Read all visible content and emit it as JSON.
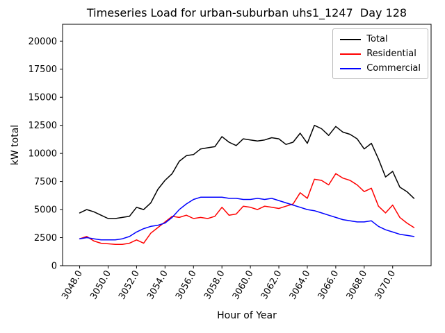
{
  "chart_data": {
    "type": "line",
    "title": "Timeseries Load for urban-suburban uhs1_1247  Day 128",
    "xlabel": "Hour of Year",
    "ylabel": "kW total",
    "xlim": [
      3046.8,
      3072.7
    ],
    "ylim": [
      0,
      21500
    ],
    "grid": false,
    "legend_position": "upper right",
    "background": "#ffffff",
    "xtick_values": [
      3048,
      3050,
      3052,
      3054,
      3056,
      3058,
      3060,
      3062,
      3064,
      3066,
      3068,
      3070
    ],
    "xtick_labels": [
      "3048.0",
      "3050.0",
      "3052.0",
      "3054.0",
      "3056.0",
      "3058.0",
      "3060.0",
      "3062.0",
      "3064.0",
      "3066.0",
      "3068.0",
      "3070.0"
    ],
    "ytick_values": [
      0,
      2500,
      5000,
      7500,
      10000,
      12500,
      15000,
      17500,
      20000
    ],
    "ytick_labels": [
      "0",
      "2500",
      "5000",
      "7500",
      "10000",
      "12500",
      "15000",
      "17500",
      "20000"
    ],
    "x": [
      3048,
      3048.5,
      3049,
      3049.5,
      3050,
      3050.5,
      3051,
      3051.5,
      3052,
      3052.5,
      3053,
      3053.5,
      3054,
      3054.5,
      3055,
      3055.5,
      3056,
      3056.5,
      3057,
      3057.5,
      3058,
      3058.5,
      3059,
      3059.5,
      3060,
      3060.5,
      3061,
      3061.5,
      3062,
      3062.5,
      3063,
      3063.5,
      3064,
      3064.5,
      3065,
      3065.5,
      3066,
      3066.5,
      3067,
      3067.5,
      3068,
      3068.5,
      3069,
      3069.5,
      3070,
      3070.5,
      3071,
      3071.5
    ],
    "series": [
      {
        "name": "Total",
        "color": "#000000",
        "values": [
          4700,
          5000,
          4800,
          4500,
          4200,
          4200,
          4300,
          4400,
          5200,
          5000,
          5600,
          6800,
          7600,
          8200,
          9300,
          9800,
          9900,
          10400,
          10500,
          10600,
          11500,
          11000,
          10700,
          11300,
          11200,
          11100,
          11200,
          11400,
          11300,
          10800,
          11000,
          11800,
          10900,
          12500,
          12200,
          11600,
          12400,
          11900,
          11700,
          11300,
          10400,
          10900,
          9500,
          7900,
          8400,
          7000,
          6600,
          6000
        ]
      },
      {
        "name": "Residential",
        "color": "#ff0000",
        "values": [
          2400,
          2600,
          2200,
          2000,
          1950,
          1900,
          1900,
          2000,
          2300,
          2000,
          2900,
          3400,
          3900,
          4400,
          4300,
          4500,
          4200,
          4300,
          4200,
          4400,
          5200,
          4500,
          4600,
          5300,
          5200,
          5000,
          5300,
          5200,
          5100,
          5300,
          5500,
          6500,
          6000,
          7700,
          7600,
          7200,
          8200,
          7800,
          7600,
          7200,
          6600,
          6900,
          5300,
          4700,
          5400,
          4300,
          3800,
          3400
        ]
      },
      {
        "name": "Commercial",
        "color": "#0000ff",
        "values": [
          2400,
          2500,
          2400,
          2300,
          2300,
          2300,
          2400,
          2600,
          3000,
          3300,
          3500,
          3600,
          3800,
          4300,
          5000,
          5500,
          5900,
          6100,
          6100,
          6100,
          6100,
          6000,
          6000,
          5900,
          5900,
          6000,
          5900,
          6000,
          5800,
          5600,
          5400,
          5200,
          5000,
          4900,
          4700,
          4500,
          4300,
          4100,
          4000,
          3900,
          3900,
          4000,
          3500,
          3200,
          3000,
          2800,
          2700,
          2600
        ]
      }
    ]
  }
}
